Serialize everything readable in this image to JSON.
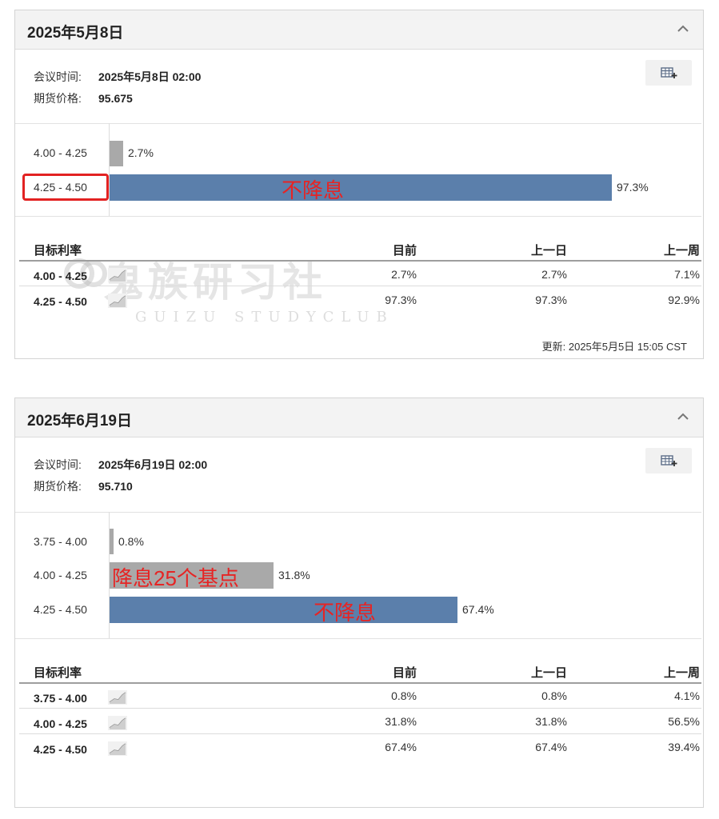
{
  "watermark": {
    "cn": "鬼族研习社",
    "en": "GUIZU STUDYCLUB"
  },
  "table_headers": {
    "rate": "目标利率",
    "current": "目前",
    "prev_day": "上一日",
    "prev_week": "上一周"
  },
  "meetings": [
    {
      "title": "2025年5月8日",
      "meeting_time_label": "会议时间:",
      "meeting_time": "2025年5月8日 02:00",
      "futures_price_label": "期货价格:",
      "futures_price": "95.675",
      "bars": [
        {
          "range": "4.00 - 4.25",
          "pct_label": "2.7%",
          "value": 2.7
        },
        {
          "range": "4.25 - 4.50",
          "pct_label": "97.3%",
          "value": 97.3
        }
      ],
      "annotations": [
        "不降息"
      ],
      "rows": [
        {
          "range": "4.00 - 4.25",
          "current": "2.7%",
          "prev_day": "2.7%",
          "prev_week": "7.1%"
        },
        {
          "range": "4.25 - 4.50",
          "current": "97.3%",
          "prev_day": "97.3%",
          "prev_week": "92.9%"
        }
      ],
      "updated": "更新: 2025年5月5日 15:05 CST"
    },
    {
      "title": "2025年6月19日",
      "meeting_time_label": "会议时间:",
      "meeting_time": "2025年6月19日 02:00",
      "futures_price_label": "期货价格:",
      "futures_price": "95.710",
      "bars": [
        {
          "range": "3.75 - 4.00",
          "pct_label": "0.8%",
          "value": 0.8
        },
        {
          "range": "4.00 - 4.25",
          "pct_label": "31.8%",
          "value": 31.8
        },
        {
          "range": "4.25 - 4.50",
          "pct_label": "67.4%",
          "value": 67.4
        }
      ],
      "annotations": [
        "降息25个基点",
        "不降息"
      ],
      "rows": [
        {
          "range": "3.75 - 4.00",
          "current": "0.8%",
          "prev_day": "0.8%",
          "prev_week": "4.1%"
        },
        {
          "range": "4.00 - 4.25",
          "current": "31.8%",
          "prev_day": "31.8%",
          "prev_week": "56.5%"
        },
        {
          "range": "4.25 - 4.50",
          "current": "67.4%",
          "prev_day": "67.4%",
          "prev_week": "39.4%"
        }
      ]
    }
  ],
  "colors": {
    "bar_blue": "#5b7fab",
    "bar_gray": "#a9a9a9",
    "annotation_red": "#e62424"
  }
}
